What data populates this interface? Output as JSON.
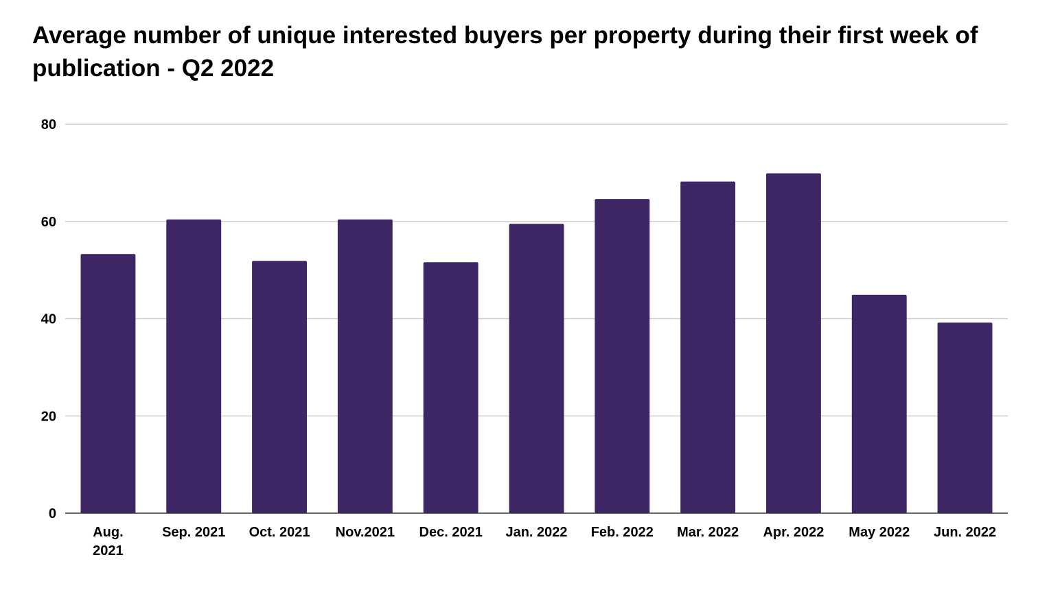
{
  "chart_data": {
    "type": "bar",
    "title": "Average number of unique interested buyers per property during their first week of publication - Q2 2022",
    "xlabel": "",
    "ylabel": "",
    "ylim": [
      0,
      80
    ],
    "yticks": [
      0,
      20,
      40,
      60,
      80
    ],
    "grid": true,
    "legend": "none",
    "bar_color": "#3e2764",
    "categories": [
      [
        "Aug.",
        "2021"
      ],
      [
        "Sep. 2021"
      ],
      [
        "Oct. 2021"
      ],
      [
        "Nov.2021"
      ],
      [
        "Dec. 2021"
      ],
      [
        "Jan. 2022"
      ],
      [
        "Feb. 2022"
      ],
      [
        "Mar. 2022"
      ],
      [
        "Apr. 2022"
      ],
      [
        "May 2022"
      ],
      [
        "Jun. 2022"
      ]
    ],
    "values": [
      53.3,
      60.4,
      51.9,
      60.4,
      51.6,
      59.5,
      64.6,
      68.2,
      69.9,
      44.9,
      39.2
    ]
  }
}
